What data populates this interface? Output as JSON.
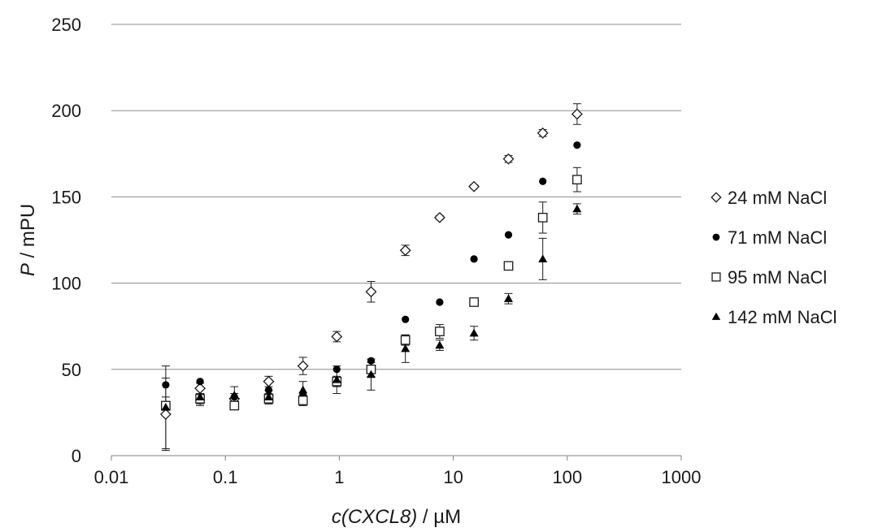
{
  "chart_data": {
    "type": "scatter",
    "xscale": "log",
    "xlim": [
      0.01,
      1000
    ],
    "ylim": [
      0,
      250
    ],
    "grid": "horizontal",
    "legend_position": "right",
    "xlabel": {
      "italic": "c(CXCL8)",
      "rest": " / µM"
    },
    "ylabel": {
      "italic": "P",
      "rest": " / mPU"
    },
    "x_ticks": [
      0.01,
      0.1,
      1,
      10,
      100,
      1000
    ],
    "x_tick_labels": [
      "0.01",
      "0.1",
      "1",
      "10",
      "100",
      "1000"
    ],
    "y_ticks": [
      0,
      50,
      100,
      150,
      200,
      250
    ],
    "y_tick_labels": [
      "0",
      "50",
      "100",
      "150",
      "200",
      "250"
    ],
    "x": [
      0.03,
      0.06,
      0.12,
      0.24,
      0.48,
      0.95,
      1.9,
      3.8,
      7.6,
      15.2,
      30.5,
      61,
      122
    ],
    "series": [
      {
        "name": "24 mM NaCl",
        "marker": "diamond-open",
        "values": [
          24,
          39,
          33,
          43,
          52,
          69,
          95,
          119,
          138,
          156,
          172,
          187,
          198
        ],
        "errors": [
          21,
          3,
          3,
          3,
          5,
          3,
          6,
          3,
          1,
          1,
          2,
          2,
          6
        ]
      },
      {
        "name": "71 mM NaCl",
        "marker": "circle-filled",
        "values": [
          41,
          43,
          34,
          38,
          35,
          50,
          55,
          79,
          89,
          114,
          128,
          159,
          180
        ]
      },
      {
        "name": "95 mM NaCl",
        "marker": "square-open",
        "values": [
          29,
          33,
          29,
          33,
          32,
          43,
          50,
          67,
          72,
          89,
          110,
          138,
          160
        ],
        "errors": [
          5,
          3,
          2,
          3,
          3,
          3,
          4,
          3,
          4,
          2,
          2,
          9,
          7
        ]
      },
      {
        "name": "142 mM NaCl",
        "marker": "triangle-filled",
        "values": [
          28,
          34,
          35,
          34,
          38,
          44,
          47,
          62,
          64,
          71,
          91,
          114,
          143
        ],
        "errors": [
          24,
          5,
          5,
          4,
          5,
          8,
          9,
          8,
          3,
          4,
          3,
          12,
          3
        ]
      }
    ]
  }
}
